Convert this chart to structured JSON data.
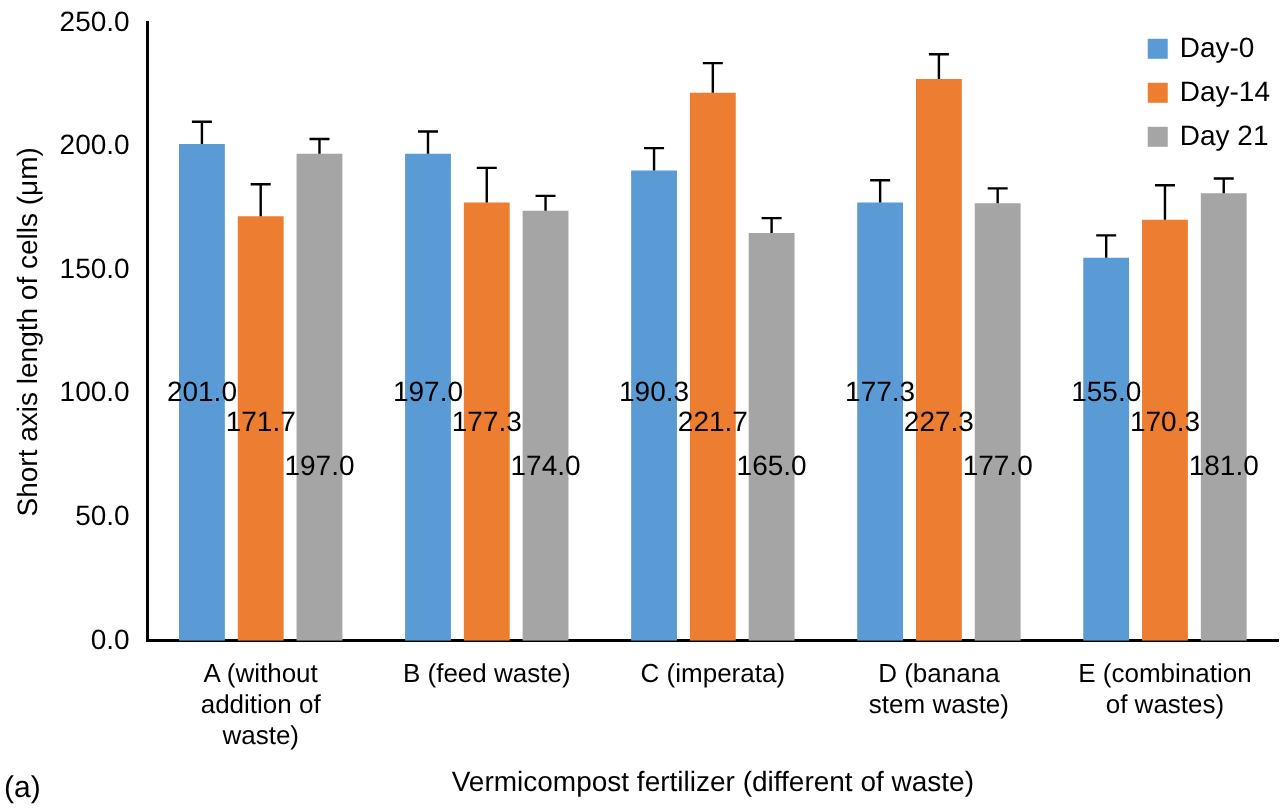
{
  "chart_data": {
    "type": "bar",
    "xlabel": "Vermicompost fertilizer (different of waste)",
    "ylabel": "Short axis length of cells (μm)",
    "categories": [
      "A (without\naddition of\nwaste)",
      "B (feed waste)",
      "C (imperata)",
      "D (banana\nstem waste)",
      "E (combination\nof wastes)"
    ],
    "series": [
      {
        "name": "Day-0",
        "color": "#5b9bd5",
        "values": [
          201.0,
          197.0,
          190.3,
          177.3,
          155.0
        ],
        "value_labels": [
          "201.0",
          "197.0",
          "190.3",
          "177.3",
          "155.0"
        ],
        "errors": [
          9,
          9,
          9,
          9,
          9
        ]
      },
      {
        "name": "Day-14",
        "color": "#ed7d31",
        "values": [
          171.7,
          177.3,
          221.7,
          227.3,
          170.3
        ],
        "value_labels": [
          "171.7",
          "177.3",
          "221.7",
          "227.3",
          "170.3"
        ],
        "errors": [
          13,
          14,
          12,
          10,
          14
        ]
      },
      {
        "name": "Day 21",
        "color": "#a5a5a5",
        "values": [
          197.0,
          174.0,
          165.0,
          177.0,
          181.0
        ],
        "value_labels": [
          "197.0",
          "174.0",
          "165.0",
          "177.0",
          "181.0"
        ],
        "errors": [
          6,
          6,
          6,
          6,
          6
        ]
      }
    ],
    "ylim": [
      0,
      250
    ],
    "yticks": [
      {
        "value": 0,
        "label": "0.0"
      },
      {
        "value": 50,
        "label": "50.0"
      },
      {
        "value": 100,
        "label": "100.0"
      },
      {
        "value": 150,
        "label": "150.0"
      },
      {
        "value": 200,
        "label": "200.0"
      },
      {
        "value": 250,
        "label": "250.0"
      }
    ],
    "grid": false,
    "legend": "top right",
    "annotations": [
      "(a)"
    ]
  }
}
